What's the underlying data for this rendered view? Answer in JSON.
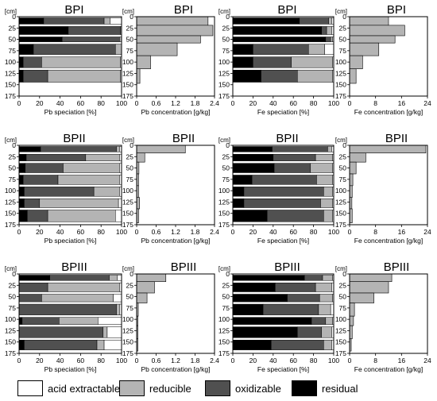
{
  "units": {
    "depth": "[cm]"
  },
  "depth_ticks": [
    0,
    25,
    50,
    75,
    100,
    125,
    150,
    175
  ],
  "colors": {
    "acid": "#ffffff",
    "reducible": "#b4b4b4",
    "oxidizable": "#505050",
    "residual": "#000000"
  },
  "legend": [
    {
      "key": "acid",
      "label": "acid extractable"
    },
    {
      "key": "reducible",
      "label": "reducible"
    },
    {
      "key": "oxidizable",
      "label": "oxidizable"
    },
    {
      "key": "residual",
      "label": "residual"
    }
  ],
  "chart_data": [
    {
      "type": "bar",
      "profile": "BPI",
      "element": "Pb",
      "kind": "speciation",
      "title": "BPI",
      "xlabel": "Pb speciation [%]",
      "xlim": [
        0,
        100
      ],
      "xticks": [
        0,
        20,
        40,
        60,
        80,
        100
      ],
      "depth_intervals": [
        [
          0,
          19
        ],
        [
          19,
          42
        ],
        [
          42,
          58
        ],
        [
          58,
          86
        ],
        [
          86,
          115
        ],
        [
          115,
          147
        ]
      ],
      "bars": [
        {
          "residual": 24,
          "oxidizable": 59,
          "reducible": 6,
          "acid": 11
        },
        {
          "residual": 48,
          "oxidizable": 51,
          "reducible": 1,
          "acid": 0
        },
        {
          "residual": 42,
          "oxidizable": 56,
          "reducible": 2,
          "acid": 0
        },
        {
          "residual": 14,
          "oxidizable": 80,
          "reducible": 6,
          "acid": 0
        },
        {
          "residual": 4,
          "oxidizable": 18,
          "reducible": 77,
          "acid": 1
        },
        {
          "residual": 4,
          "oxidizable": 24,
          "reducible": 71,
          "acid": 1
        }
      ]
    },
    {
      "type": "bar",
      "profile": "BPI",
      "element": "Pb",
      "kind": "concentration",
      "title": "BPI",
      "xlabel": "Pb concentration [g/kg]",
      "xlim": [
        0,
        2.4
      ],
      "xticks": [
        "0",
        "0.6",
        "1.2",
        "1.8",
        "2.4"
      ],
      "depth_intervals": [
        [
          0,
          19
        ],
        [
          19,
          42
        ],
        [
          42,
          58
        ],
        [
          58,
          86
        ],
        [
          86,
          115
        ],
        [
          115,
          147
        ]
      ],
      "values": [
        2.2,
        2.35,
        1.97,
        1.25,
        0.43,
        0.1
      ]
    },
    {
      "type": "bar",
      "profile": "BPI",
      "element": "Fe",
      "kind": "speciation",
      "title": "BPI",
      "xlabel": "Fe speciation [%]",
      "xlim": [
        0,
        100
      ],
      "xticks": [
        0,
        20,
        40,
        60,
        80,
        100
      ],
      "depth_intervals": [
        [
          0,
          19
        ],
        [
          19,
          42
        ],
        [
          42,
          58
        ],
        [
          58,
          86
        ],
        [
          86,
          115
        ],
        [
          115,
          147
        ]
      ],
      "bars": [
        {
          "residual": 66,
          "oxidizable": 29,
          "reducible": 3,
          "acid": 2
        },
        {
          "residual": 88,
          "oxidizable": 5,
          "reducible": 5,
          "acid": 2
        },
        {
          "residual": 92,
          "oxidizable": 5,
          "reducible": 2,
          "acid": 1
        },
        {
          "residual": 20,
          "oxidizable": 55,
          "reducible": 16,
          "acid": 9
        },
        {
          "residual": 20,
          "oxidizable": 38,
          "reducible": 41,
          "acid": 1
        },
        {
          "residual": 28,
          "oxidizable": 36,
          "reducible": 35,
          "acid": 1
        }
      ]
    },
    {
      "type": "bar",
      "profile": "BPI",
      "element": "Fe",
      "kind": "concentration",
      "title": "BPI",
      "xlabel": "Fe concentration [g/kg]",
      "xlim": [
        0,
        24
      ],
      "xticks": [
        "0",
        "8",
        "16",
        "24"
      ],
      "depth_intervals": [
        [
          0,
          19
        ],
        [
          19,
          42
        ],
        [
          42,
          58
        ],
        [
          58,
          86
        ],
        [
          86,
          115
        ],
        [
          115,
          147
        ]
      ],
      "values": [
        12,
        17,
        14,
        9,
        4,
        2
      ]
    },
    {
      "type": "bar",
      "profile": "BPII",
      "element": "Pb",
      "kind": "speciation",
      "title": "BPII",
      "xlabel": "Pb speciation [%]",
      "xlim": [
        0,
        100
      ],
      "xticks": [
        0,
        20,
        40,
        60,
        80,
        100
      ],
      "depth_intervals": [
        [
          0,
          17
        ],
        [
          17,
          37
        ],
        [
          37,
          63
        ],
        [
          63,
          89
        ],
        [
          89,
          115
        ],
        [
          115,
          140
        ],
        [
          140,
          171
        ]
      ],
      "bars": [
        {
          "residual": 21,
          "oxidizable": 74,
          "reducible": 3,
          "acid": 2
        },
        {
          "residual": 7,
          "oxidizable": 58,
          "reducible": 33,
          "acid": 2
        },
        {
          "residual": 6,
          "oxidizable": 37,
          "reducible": 55,
          "acid": 2
        },
        {
          "residual": 4,
          "oxidizable": 34,
          "reducible": 60,
          "acid": 2
        },
        {
          "residual": 5,
          "oxidizable": 68,
          "reducible": 25,
          "acid": 2
        },
        {
          "residual": 5,
          "oxidizable": 15,
          "reducible": 77,
          "acid": 3
        },
        {
          "residual": 8,
          "oxidizable": 20,
          "reducible": 66,
          "acid": 6
        }
      ]
    },
    {
      "type": "bar",
      "profile": "BPII",
      "element": "Pb",
      "kind": "concentration",
      "title": "BPII",
      "xlabel": "Pb concentration [g/kg]",
      "xlim": [
        0,
        2.4
      ],
      "xticks": [
        "0",
        "0.6",
        "1.2",
        "1.8",
        "2.4"
      ],
      "depth_intervals": [
        [
          0,
          17
        ],
        [
          17,
          37
        ],
        [
          37,
          63
        ],
        [
          63,
          89
        ],
        [
          89,
          115
        ],
        [
          115,
          140
        ],
        [
          140,
          171
        ]
      ],
      "values": [
        1.5,
        0.25,
        0.07,
        0.06,
        0.06,
        0.09,
        0.06
      ]
    },
    {
      "type": "bar",
      "profile": "BPII",
      "element": "Fe",
      "kind": "speciation",
      "title": "BPII",
      "xlabel": "Fe speciation [%]",
      "xlim": [
        0,
        100
      ],
      "xticks": [
        0,
        20,
        40,
        60,
        80,
        100
      ],
      "depth_intervals": [
        [
          0,
          17
        ],
        [
          17,
          37
        ],
        [
          37,
          63
        ],
        [
          63,
          89
        ],
        [
          89,
          115
        ],
        [
          115,
          140
        ],
        [
          140,
          171
        ]
      ],
      "bars": [
        {
          "residual": 39,
          "oxidizable": 55,
          "reducible": 4,
          "acid": 2
        },
        {
          "residual": 40,
          "oxidizable": 42,
          "reducible": 17,
          "acid": 1
        },
        {
          "residual": 41,
          "oxidizable": 36,
          "reducible": 22,
          "acid": 1
        },
        {
          "residual": 19,
          "oxidizable": 64,
          "reducible": 16,
          "acid": 1
        },
        {
          "residual": 11,
          "oxidizable": 79,
          "reducible": 9,
          "acid": 1
        },
        {
          "residual": 11,
          "oxidizable": 76,
          "reducible": 12,
          "acid": 1
        },
        {
          "residual": 34,
          "oxidizable": 56,
          "reducible": 9,
          "acid": 1
        }
      ]
    },
    {
      "type": "bar",
      "profile": "BPII",
      "element": "Fe",
      "kind": "concentration",
      "title": "BPII",
      "xlabel": "Fe concentration [g/kg]",
      "xlim": [
        0,
        24
      ],
      "xticks": [
        "0",
        "8",
        "16",
        "24"
      ],
      "depth_intervals": [
        [
          0,
          17
        ],
        [
          17,
          37
        ],
        [
          37,
          63
        ],
        [
          63,
          89
        ],
        [
          89,
          115
        ],
        [
          115,
          140
        ],
        [
          140,
          171
        ]
      ],
      "values": [
        23.5,
        5,
        2,
        1,
        0.8,
        0.7,
        0.8
      ]
    },
    {
      "type": "bar",
      "profile": "BPIII",
      "element": "Pb",
      "kind": "speciation",
      "title": "BPIII",
      "xlabel": "Pb speciation [%]",
      "xlim": [
        0,
        100
      ],
      "xticks": [
        0,
        20,
        40,
        60,
        80,
        100
      ],
      "depth_intervals": [
        [
          0,
          17
        ],
        [
          17,
          42
        ],
        [
          42,
          64
        ],
        [
          64,
          93
        ],
        [
          93,
          114
        ],
        [
          114,
          143
        ],
        [
          143,
          170
        ]
      ],
      "bars": [
        {
          "residual": 30,
          "oxidizable": 58,
          "reducible": 8,
          "acid": 4
        },
        {
          "residual": 0,
          "oxidizable": 28,
          "reducible": 70,
          "acid": 2
        },
        {
          "residual": 0,
          "oxidizable": 22,
          "reducible": 70,
          "acid": 8
        },
        {
          "residual": 0,
          "oxidizable": 95,
          "reducible": 3,
          "acid": 2
        },
        {
          "residual": 3,
          "oxidizable": 36,
          "reducible": 38,
          "acid": 23
        },
        {
          "residual": 0,
          "oxidizable": 82,
          "reducible": 4,
          "acid": 14
        },
        {
          "residual": 5,
          "oxidizable": 71,
          "reducible": 7,
          "acid": 17
        }
      ]
    },
    {
      "type": "bar",
      "profile": "BPIII",
      "element": "Pb",
      "kind": "concentration",
      "title": "BPIII",
      "xlabel": "Pb concentration [g/kg]",
      "xlim": [
        0,
        2.4
      ],
      "xticks": [
        "0",
        "0.6",
        "1.2",
        "1.8",
        "2.4"
      ],
      "depth_intervals": [
        [
          0,
          17
        ],
        [
          17,
          42
        ],
        [
          42,
          64
        ],
        [
          64,
          93
        ],
        [
          93,
          114
        ],
        [
          114,
          143
        ],
        [
          143,
          170
        ]
      ],
      "values": [
        0.9,
        0.55,
        0.32,
        0.05,
        0.04,
        0.04,
        0.04
      ]
    },
    {
      "type": "bar",
      "profile": "BPIII",
      "element": "Fe",
      "kind": "speciation",
      "title": "BPIII",
      "xlabel": "Fe speciation [%]",
      "xlim": [
        0,
        100
      ],
      "xticks": [
        0,
        20,
        40,
        60,
        80,
        100
      ],
      "depth_intervals": [
        [
          0,
          17
        ],
        [
          17,
          42
        ],
        [
          42,
          64
        ],
        [
          64,
          93
        ],
        [
          93,
          114
        ],
        [
          114,
          143
        ],
        [
          143,
          170
        ]
      ],
      "bars": [
        {
          "residual": 71,
          "oxidizable": 18,
          "reducible": 10,
          "acid": 1
        },
        {
          "residual": 42,
          "oxidizable": 40,
          "reducible": 16,
          "acid": 2
        },
        {
          "residual": 54,
          "oxidizable": 32,
          "reducible": 13,
          "acid": 1
        },
        {
          "residual": 30,
          "oxidizable": 55,
          "reducible": 12,
          "acid": 3
        },
        {
          "residual": 78,
          "oxidizable": 14,
          "reducible": 7,
          "acid": 1
        },
        {
          "residual": 64,
          "oxidizable": 24,
          "reducible": 10,
          "acid": 2
        },
        {
          "residual": 38,
          "oxidizable": 52,
          "reducible": 8,
          "acid": 2
        }
      ]
    },
    {
      "type": "bar",
      "profile": "BPIII",
      "element": "Fe",
      "kind": "concentration",
      "title": "BPIII",
      "xlabel": "Fe concentration [g/kg]",
      "xlim": [
        0,
        24
      ],
      "xticks": [
        "0",
        "8",
        "16",
        "24"
      ],
      "depth_intervals": [
        [
          0,
          17
        ],
        [
          17,
          42
        ],
        [
          42,
          64
        ],
        [
          64,
          93
        ],
        [
          93,
          114
        ],
        [
          114,
          143
        ],
        [
          143,
          170
        ]
      ],
      "values": [
        13,
        12,
        7.5,
        1.5,
        1.2,
        0.8,
        0.5
      ]
    }
  ]
}
